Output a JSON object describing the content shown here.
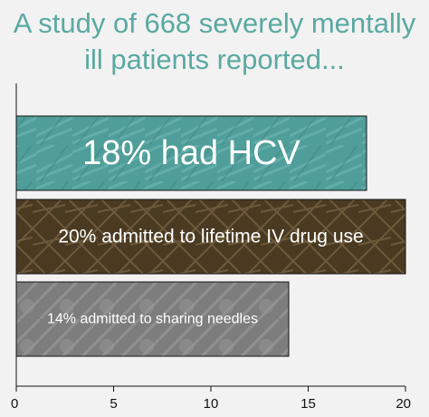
{
  "title_lines": [
    "A study of 668 severely mentally",
    "ill patients reported..."
  ],
  "chart_data": {
    "type": "bar",
    "orientation": "horizontal",
    "categories": [
      "18% had HCV",
      "20% admitted to lifetime IV drug use",
      "14% admitted to sharing needles"
    ],
    "values": [
      18,
      20,
      14
    ],
    "xlim": [
      0,
      20
    ],
    "xticks": [
      0,
      5,
      10,
      15,
      20
    ],
    "grid": false,
    "colors": [
      "#4f9e9a",
      "#4a3a22",
      "#7d7d7d"
    ]
  }
}
